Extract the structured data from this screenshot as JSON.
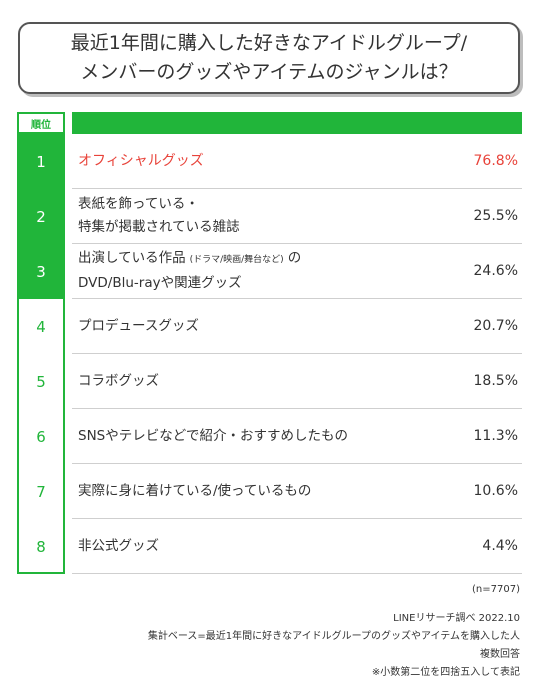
{
  "title": {
    "line1": "最近1年間に購入した好きなアイドルグループ/",
    "line2": "メンバーのグッズやアイテムのジャンルは？"
  },
  "header": {
    "rank_label": "順位"
  },
  "chart_data": {
    "type": "table",
    "unit": "%",
    "rows": [
      {
        "rank": "1",
        "line1": "オフィシャルグッズ",
        "value": 76.8,
        "display": "76.8%"
      },
      {
        "rank": "2",
        "line1": "表紙を飾っている・",
        "line2": "特集が掲載されている雑誌",
        "value": 25.5,
        "display": "25.5%"
      },
      {
        "rank": "3",
        "line1": "出演している作品",
        "line1_small": "(ドラマ/映画/舞台など)",
        "line1_tail": "の",
        "line2": "DVD/Blu-rayや関連グッズ",
        "value": 24.6,
        "display": "24.6%"
      },
      {
        "rank": "4",
        "line1": "プロデュースグッズ",
        "value": 20.7,
        "display": "20.7%"
      },
      {
        "rank": "5",
        "line1": "コラボグッズ",
        "value": 18.5,
        "display": "18.5%"
      },
      {
        "rank": "6",
        "line1": "SNSやテレビなどで紹介・おすすめしたもの",
        "value": 11.3,
        "display": "11.3%"
      },
      {
        "rank": "7",
        "line1": "実際に身に着けている/使っているもの",
        "value": 10.6,
        "display": "10.6%"
      },
      {
        "rank": "8",
        "line1": "非公式グッズ",
        "value": 4.4,
        "display": "4.4%"
      }
    ]
  },
  "notes": {
    "n": "(n=7707)",
    "source": "LINEリサーチ調べ 2022.10",
    "base": "集計ベース=最近1年間に好きなアイドルグループのグッズやアイテムを購入した人",
    "multiple": "複数回答",
    "rounding": "※小数第二位を四捨五入して表記"
  },
  "colors": {
    "accent": "#21b53a",
    "highlight": "#e8433a",
    "text": "#333333"
  }
}
